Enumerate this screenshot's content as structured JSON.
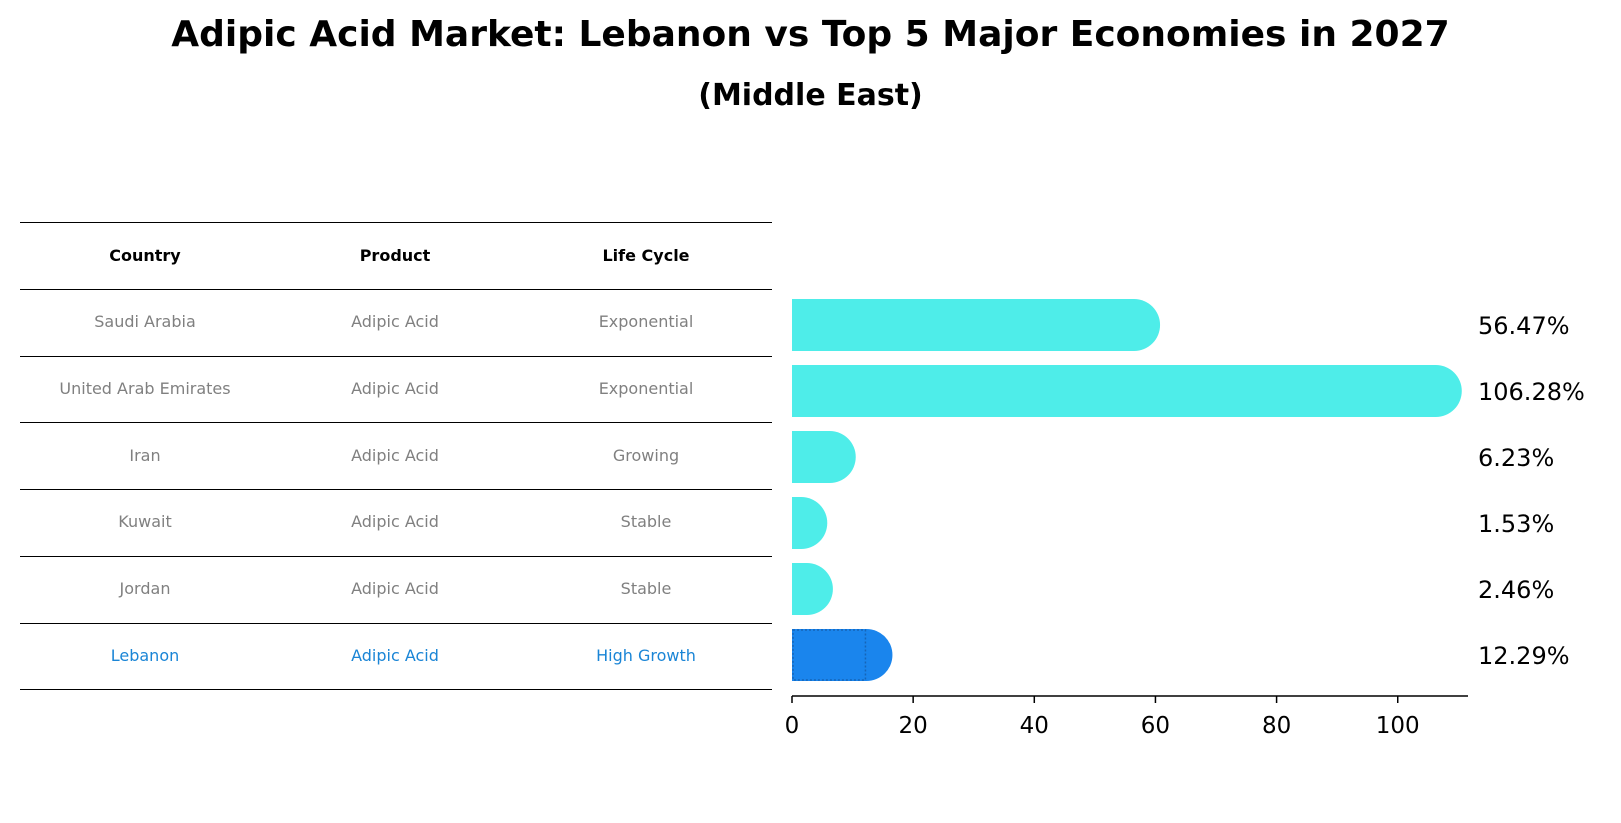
{
  "title": "Adipic Acid Market: Lebanon vs Top 5 Major Economies in 2027",
  "subtitle": "(Middle East)",
  "table": {
    "headers": [
      "Country",
      "Product",
      "Life Cycle"
    ],
    "rows": [
      {
        "country": "Saudi Arabia",
        "product": "Adipic Acid",
        "life_cycle": "Exponential"
      },
      {
        "country": "United Arab Emirates",
        "product": "Adipic Acid",
        "life_cycle": "Exponential"
      },
      {
        "country": "Iran",
        "product": "Adipic Acid",
        "life_cycle": "Growing"
      },
      {
        "country": "Kuwait",
        "product": "Adipic Acid",
        "life_cycle": "Stable"
      },
      {
        "country": "Jordan",
        "product": "Adipic Acid",
        "life_cycle": "Stable"
      },
      {
        "country": "Lebanon",
        "product": "Adipic Acid",
        "life_cycle": "High Growth"
      }
    ]
  },
  "chart_data": {
    "type": "bar",
    "orientation": "horizontal",
    "categories": [
      "Saudi Arabia",
      "United Arab Emirates",
      "Iran",
      "Kuwait",
      "Jordan",
      "Lebanon"
    ],
    "values": [
      56.47,
      106.28,
      6.23,
      1.53,
      2.46,
      12.29
    ],
    "value_labels": [
      "56.47%",
      "106.28%",
      "6.23%",
      "1.53%",
      "2.46%",
      "12.29%"
    ],
    "highlight_category": "Lebanon",
    "xlim": [
      0,
      111.6
    ],
    "xticks": [
      0,
      20,
      40,
      60,
      80,
      100
    ],
    "xtick_labels": [
      "0",
      "20",
      "40",
      "60",
      "80",
      "100"
    ],
    "xlabel": "",
    "ylabel": "",
    "grid": false,
    "colors": {
      "default": "#4eede9",
      "highlight": "#1a85ed",
      "highlight_text": "#1a85d6",
      "table_text": "#808080"
    }
  }
}
